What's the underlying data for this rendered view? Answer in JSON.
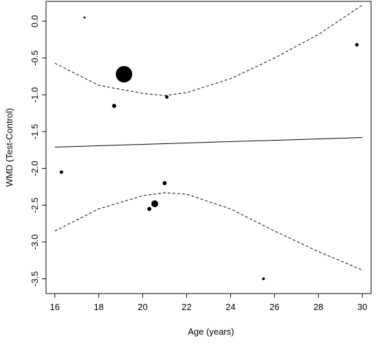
{
  "chart_data": {
    "type": "scatter",
    "x_label": "Age (years)",
    "y_label": "WMD (Test-Control)",
    "xlim": [
      15.6,
      30.4
    ],
    "ylim": [
      -3.7,
      0.27
    ],
    "xticks": [
      16,
      18,
      20,
      22,
      24,
      26,
      28,
      30
    ],
    "yticks": [
      {
        "value": 0,
        "label": "0.0"
      },
      -0.5,
      {
        "value": -1,
        "label": "-1.0"
      },
      -1.5,
      {
        "value": -2,
        "label": "-2.0"
      },
      -2.5,
      {
        "value": -3,
        "label": "-3.0"
      },
      -3.5
    ],
    "color": "#000000",
    "points": {
      "x": [
        17.35,
        29.75,
        19.15,
        18.7,
        21.1,
        16.3,
        21.0,
        20.55,
        20.3,
        25.5
      ],
      "values": [
        0.05,
        -0.32,
        -0.72,
        -1.15,
        -1.03,
        -2.05,
        -2.2,
        -2.48,
        -2.55,
        -3.5
      ],
      "sizes": [
        1.5,
        2.5,
        12,
        3,
        2.5,
        2.5,
        3,
        5,
        3,
        2
      ]
    },
    "fit": {
      "x": [
        16,
        30
      ],
      "values": [
        -1.71,
        -1.58
      ]
    },
    "upper_band": {
      "x": [
        16,
        18,
        20,
        21,
        22,
        24,
        26,
        28,
        30
      ],
      "values": [
        -0.57,
        -0.87,
        -0.98,
        -1.01,
        -0.97,
        -0.78,
        -0.5,
        -0.18,
        0.22
      ]
    },
    "lower_band": {
      "x": [
        16,
        18,
        20,
        21,
        22,
        24,
        26,
        28,
        30
      ],
      "values": [
        -2.85,
        -2.55,
        -2.37,
        -2.33,
        -2.35,
        -2.55,
        -2.85,
        -3.13,
        -3.38
      ]
    }
  }
}
